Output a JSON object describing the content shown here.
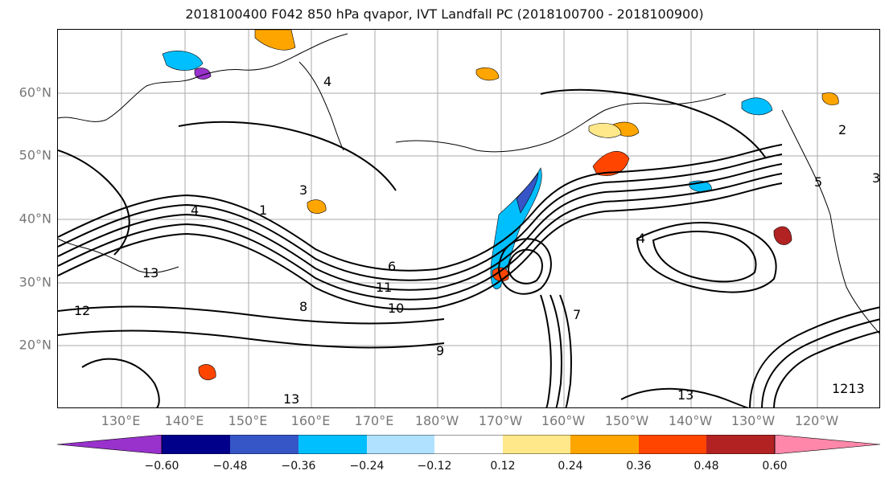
{
  "title": "2018100400 F042 850 hPa qvapor, IVT Landfall PC (2018100700 - 2018100900)",
  "lat_labels": [
    "60°N",
    "50°N",
    "40°N",
    "30°N",
    "20°N"
  ],
  "lon_labels": [
    "130°E",
    "140°E",
    "150°E",
    "160°E",
    "170°E",
    "180°W",
    "170°W",
    "160°W",
    "150°W",
    "140°W",
    "130°W",
    "120°W"
  ],
  "contour_labels": [
    "4",
    "3",
    "5",
    "6",
    "13",
    "11",
    "10",
    "9",
    "8",
    "12",
    "7",
    "2",
    "1",
    "1213"
  ],
  "colorbar": {
    "ticks": [
      "−0.60",
      "−0.48",
      "−0.36",
      "−0.24",
      "−0.12",
      "0.12",
      "0.24",
      "0.36",
      "0.48",
      "0.60"
    ],
    "colors": [
      "#9932cc",
      "#00008b",
      "#3656c7",
      "#00bfff",
      "#b0e2ff",
      "#ffffff",
      "#ffe88a",
      "#ffa500",
      "#ff4500",
      "#b22222",
      "#ff88aa"
    ]
  }
}
